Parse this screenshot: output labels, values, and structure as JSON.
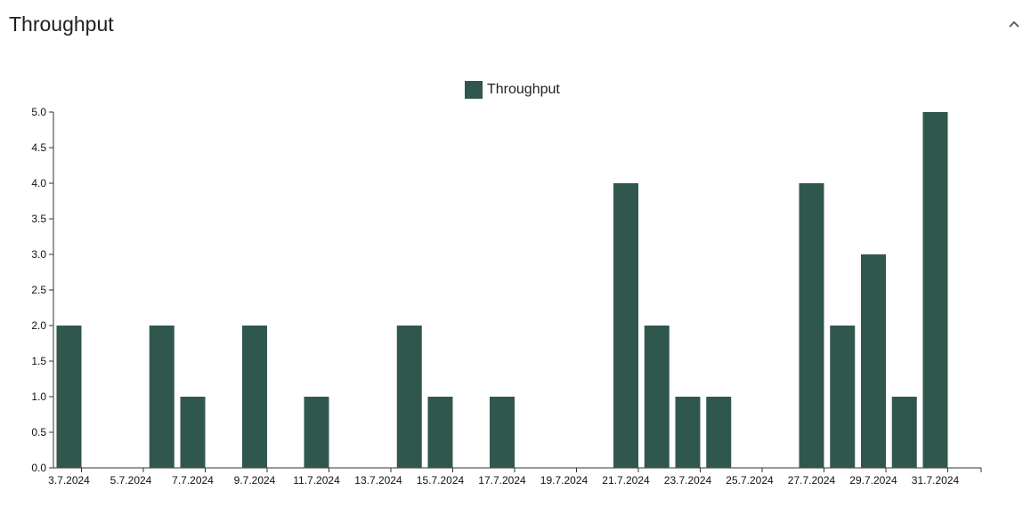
{
  "header": {
    "title": "Throughput",
    "collapse_icon": "chevron-up-icon"
  },
  "legend": {
    "items": [
      {
        "label": "Throughput",
        "color": "#30574e"
      }
    ]
  },
  "chart_data": {
    "type": "bar",
    "categories": [
      "3.7.2024",
      "4.7.2024",
      "5.7.2024",
      "6.7.2024",
      "7.7.2024",
      "8.7.2024",
      "9.7.2024",
      "10.7.2024",
      "11.7.2024",
      "12.7.2024",
      "13.7.2024",
      "14.7.2024",
      "15.7.2024",
      "16.7.2024",
      "17.7.2024",
      "18.7.2024",
      "19.7.2024",
      "20.7.2024",
      "21.7.2024",
      "22.7.2024",
      "23.7.2024",
      "24.7.2024",
      "25.7.2024",
      "26.7.2024",
      "27.7.2024",
      "28.7.2024",
      "29.7.2024",
      "30.7.2024",
      "31.7.2024"
    ],
    "x_tick_labels": [
      "3.7.2024",
      "5.7.2024",
      "7.7.2024",
      "9.7.2024",
      "11.7.2024",
      "13.7.2024",
      "15.7.2024",
      "17.7.2024",
      "19.7.2024",
      "21.7.2024",
      "23.7.2024",
      "25.7.2024",
      "27.7.2024",
      "29.7.2024",
      "31.7.2024"
    ],
    "y_tick_labels": [
      "0.0",
      "0.5",
      "1.0",
      "1.5",
      "2.0",
      "2.5",
      "3.0",
      "3.5",
      "4.0",
      "4.5",
      "5.0"
    ],
    "series": [
      {
        "name": "Throughput",
        "color": "#30574e",
        "values": [
          2,
          0,
          0,
          2,
          1,
          0,
          2,
          0,
          1,
          0,
          0,
          2,
          1,
          0,
          1,
          0,
          0,
          0,
          4,
          2,
          1,
          1,
          0,
          0,
          4,
          2,
          3,
          1,
          5
        ]
      }
    ],
    "ylim": [
      0,
      5
    ],
    "legend_position": "top-center",
    "grid": false
  }
}
